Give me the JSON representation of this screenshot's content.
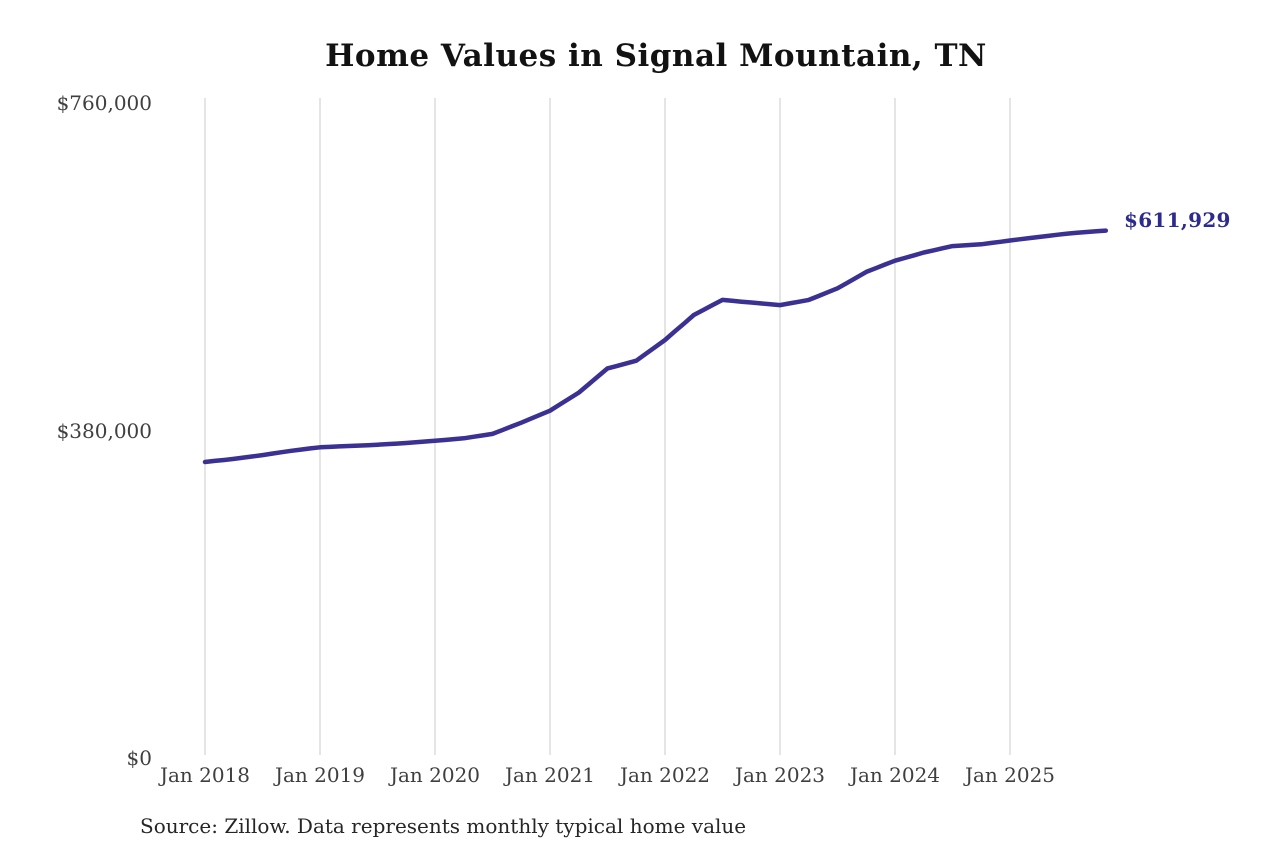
{
  "chart_data": {
    "type": "line",
    "title": "Home Values in Signal Mountain, TN",
    "source": "Source: Zillow. Data represents monthly typical home value",
    "end_label": "$611,929",
    "latest_value": 611929,
    "grid": "vertical-only",
    "colors": {
      "line": "#3a3193",
      "end_label": "#2e2b8e",
      "grid": "#cbcbcb",
      "tick_text": "#3f3f3f",
      "title_text": "#121212"
    },
    "y_axis": {
      "max": 760000,
      "ticks": [
        {
          "label": "$0",
          "value": 0
        },
        {
          "label": "$380,000",
          "value": 380000
        },
        {
          "label": "$760,000",
          "value": 760000
        }
      ]
    },
    "x_axis": {
      "ticks": [
        {
          "label": "Jan 2018",
          "month_index": 0
        },
        {
          "label": "Jan 2019",
          "month_index": 12
        },
        {
          "label": "Jan 2020",
          "month_index": 24
        },
        {
          "label": "Jan 2021",
          "month_index": 36
        },
        {
          "label": "Jan 2022",
          "month_index": 48
        },
        {
          "label": "Jan 2023",
          "month_index": 60
        },
        {
          "label": "Jan 2024",
          "month_index": 72
        },
        {
          "label": "Jan 2025",
          "month_index": 84
        }
      ]
    },
    "series": [
      {
        "name": "Typical home value",
        "start": "2018-01",
        "frequency": "monthly",
        "values": [
          343500,
          344700,
          345800,
          347000,
          348500,
          350000,
          351500,
          353200,
          354800,
          356500,
          357800,
          359200,
          360500,
          361000,
          361500,
          362000,
          362500,
          363000,
          363500,
          364200,
          364800,
          365500,
          366300,
          367200,
          368000,
          369000,
          370000,
          371000,
          372700,
          374300,
          376000,
          380300,
          384700,
          389000,
          393700,
          398300,
          403000,
          410000,
          417000,
          424000,
          433300,
          442700,
          452000,
          455000,
          458000,
          461000,
          469000,
          477000,
          485000,
          494700,
          504300,
          514000,
          519800,
          525700,
          531500,
          530500,
          529500,
          528500,
          527500,
          526500,
          525500,
          527500,
          529500,
          531500,
          536000,
          540500,
          545000,
          551300,
          557700,
          564000,
          568300,
          572700,
          577000,
          580200,
          583300,
          586500,
          589000,
          591500,
          594000,
          594700,
          595300,
          596000,
          597500,
          599000,
          600500,
          601800,
          603200,
          604500,
          605800,
          607200,
          608500,
          609400,
          610300,
          611100,
          611929
        ]
      }
    ]
  }
}
